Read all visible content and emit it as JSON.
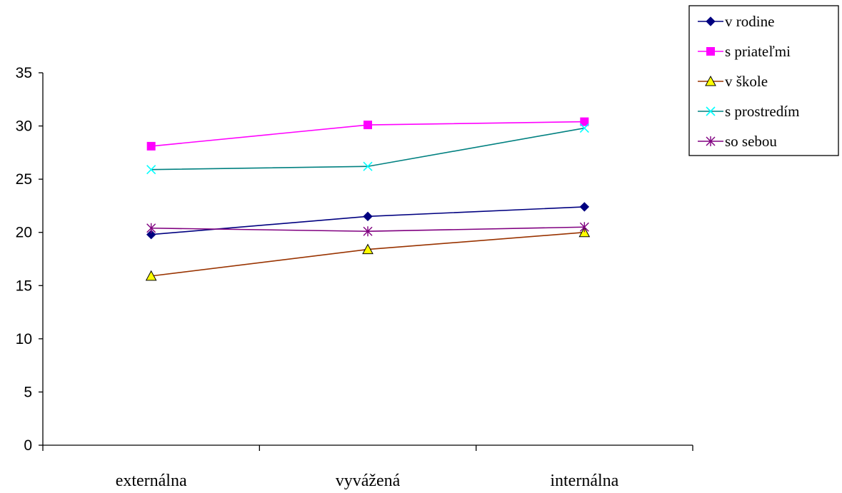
{
  "chart_data": {
    "type": "line",
    "categories": [
      "externálna",
      "vyvážená",
      "internálna"
    ],
    "ylim": [
      0,
      35
    ],
    "yticks": [
      0,
      5,
      10,
      15,
      20,
      25,
      30,
      35
    ],
    "grid": false,
    "legend_position": "top-right",
    "series": [
      {
        "name": "v rodine",
        "values": [
          19.8,
          21.5,
          22.4
        ],
        "color": "#000080",
        "marker": "diamond"
      },
      {
        "name": "s priateľmi",
        "values": [
          28.1,
          30.1,
          30.4
        ],
        "color": "#FF00FF",
        "marker": "square"
      },
      {
        "name": "v škole",
        "values": [
          15.9,
          18.4,
          20.0
        ],
        "color": "#993300",
        "marker": "triangle",
        "marker_fill": "#FFFF00"
      },
      {
        "name": "s prostredím",
        "values": [
          25.9,
          26.2,
          29.8
        ],
        "color": "#008080",
        "marker": "x",
        "marker_color": "#00FFFF"
      },
      {
        "name": "so sebou",
        "values": [
          20.4,
          20.1,
          20.5
        ],
        "color": "#800080",
        "marker": "star"
      }
    ]
  }
}
